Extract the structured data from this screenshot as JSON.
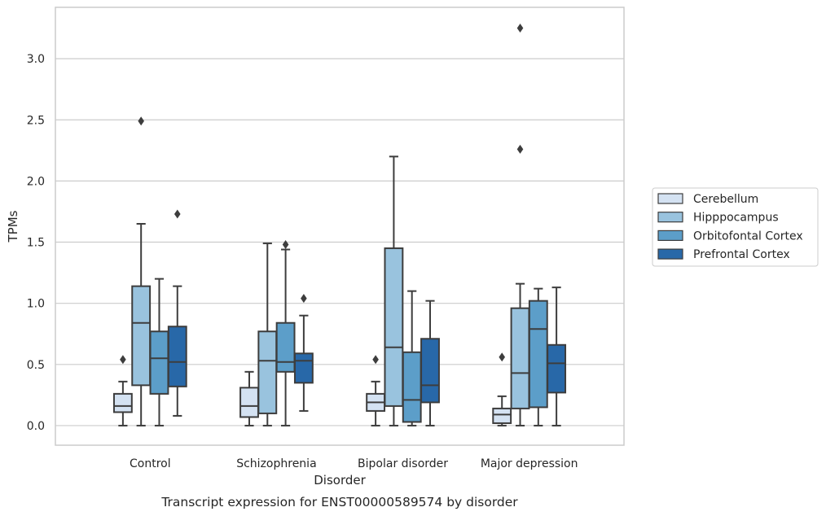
{
  "chart_data": {
    "type": "box",
    "caption": "Transcript expression for ENST00000589574 by disorder",
    "xlabel": "Disorder",
    "ylabel": "TPMs",
    "ylim": [
      -0.16,
      3.42
    ],
    "yticks": [
      0.0,
      0.5,
      1.0,
      1.5,
      2.0,
      2.5,
      3.0
    ],
    "ytick_labels": [
      "0.0",
      "0.5",
      "1.0",
      "1.5",
      "2.0",
      "2.5",
      "3.0"
    ],
    "grid": "horizontal",
    "legend_position": "right",
    "categories": [
      "Control",
      "Schizophrenia",
      "Bipolar disorder",
      "Major depression"
    ],
    "series": [
      {
        "name": "Cerebellum",
        "color": "#d4e2f2",
        "boxes": [
          {
            "whisker_low": 0.0,
            "q1": 0.11,
            "median": 0.16,
            "q3": 0.26,
            "whisker_high": 0.36,
            "outliers": [
              0.54
            ]
          },
          {
            "whisker_low": 0.0,
            "q1": 0.07,
            "median": 0.16,
            "q3": 0.31,
            "whisker_high": 0.44,
            "outliers": []
          },
          {
            "whisker_low": 0.0,
            "q1": 0.12,
            "median": 0.19,
            "q3": 0.26,
            "whisker_high": 0.36,
            "outliers": [
              0.54
            ]
          },
          {
            "whisker_low": 0.0,
            "q1": 0.02,
            "median": 0.09,
            "q3": 0.14,
            "whisker_high": 0.24,
            "outliers": [
              0.56
            ]
          }
        ]
      },
      {
        "name": "Hipppocampus",
        "color": "#99c3de",
        "boxes": [
          {
            "whisker_low": 0.0,
            "q1": 0.33,
            "median": 0.84,
            "q3": 1.14,
            "whisker_high": 1.65,
            "outliers": [
              2.49
            ]
          },
          {
            "whisker_low": 0.0,
            "q1": 0.1,
            "median": 0.53,
            "q3": 0.77,
            "whisker_high": 1.49,
            "outliers": []
          },
          {
            "whisker_low": 0.0,
            "q1": 0.16,
            "median": 0.64,
            "q3": 1.45,
            "whisker_high": 2.2,
            "outliers": []
          },
          {
            "whisker_low": 0.0,
            "q1": 0.14,
            "median": 0.43,
            "q3": 0.96,
            "whisker_high": 1.16,
            "outliers": [
              2.26,
              3.25
            ]
          }
        ]
      },
      {
        "name": "Orbitofontal Cortex",
        "color": "#5c9ec9",
        "boxes": [
          {
            "whisker_low": 0.0,
            "q1": 0.26,
            "median": 0.55,
            "q3": 0.77,
            "whisker_high": 1.2,
            "outliers": []
          },
          {
            "whisker_low": 0.0,
            "q1": 0.44,
            "median": 0.52,
            "q3": 0.84,
            "whisker_high": 1.44,
            "outliers": [
              1.48
            ]
          },
          {
            "whisker_low": 0.0,
            "q1": 0.03,
            "median": 0.21,
            "q3": 0.6,
            "whisker_high": 1.1,
            "outliers": []
          },
          {
            "whisker_low": 0.0,
            "q1": 0.15,
            "median": 0.79,
            "q3": 1.02,
            "whisker_high": 1.12,
            "outliers": []
          }
        ]
      },
      {
        "name": "Prefrontal Cortex",
        "color": "#2868a8",
        "boxes": [
          {
            "whisker_low": 0.08,
            "q1": 0.32,
            "median": 0.52,
            "q3": 0.81,
            "whisker_high": 1.14,
            "outliers": [
              1.73
            ]
          },
          {
            "whisker_low": 0.12,
            "q1": 0.35,
            "median": 0.53,
            "q3": 0.59,
            "whisker_high": 0.9,
            "outliers": [
              1.04
            ]
          },
          {
            "whisker_low": 0.0,
            "q1": 0.19,
            "median": 0.33,
            "q3": 0.71,
            "whisker_high": 1.02,
            "outliers": []
          },
          {
            "whisker_low": 0.0,
            "q1": 0.27,
            "median": 0.51,
            "q3": 0.66,
            "whisker_high": 1.13,
            "outliers": []
          }
        ]
      }
    ]
  }
}
